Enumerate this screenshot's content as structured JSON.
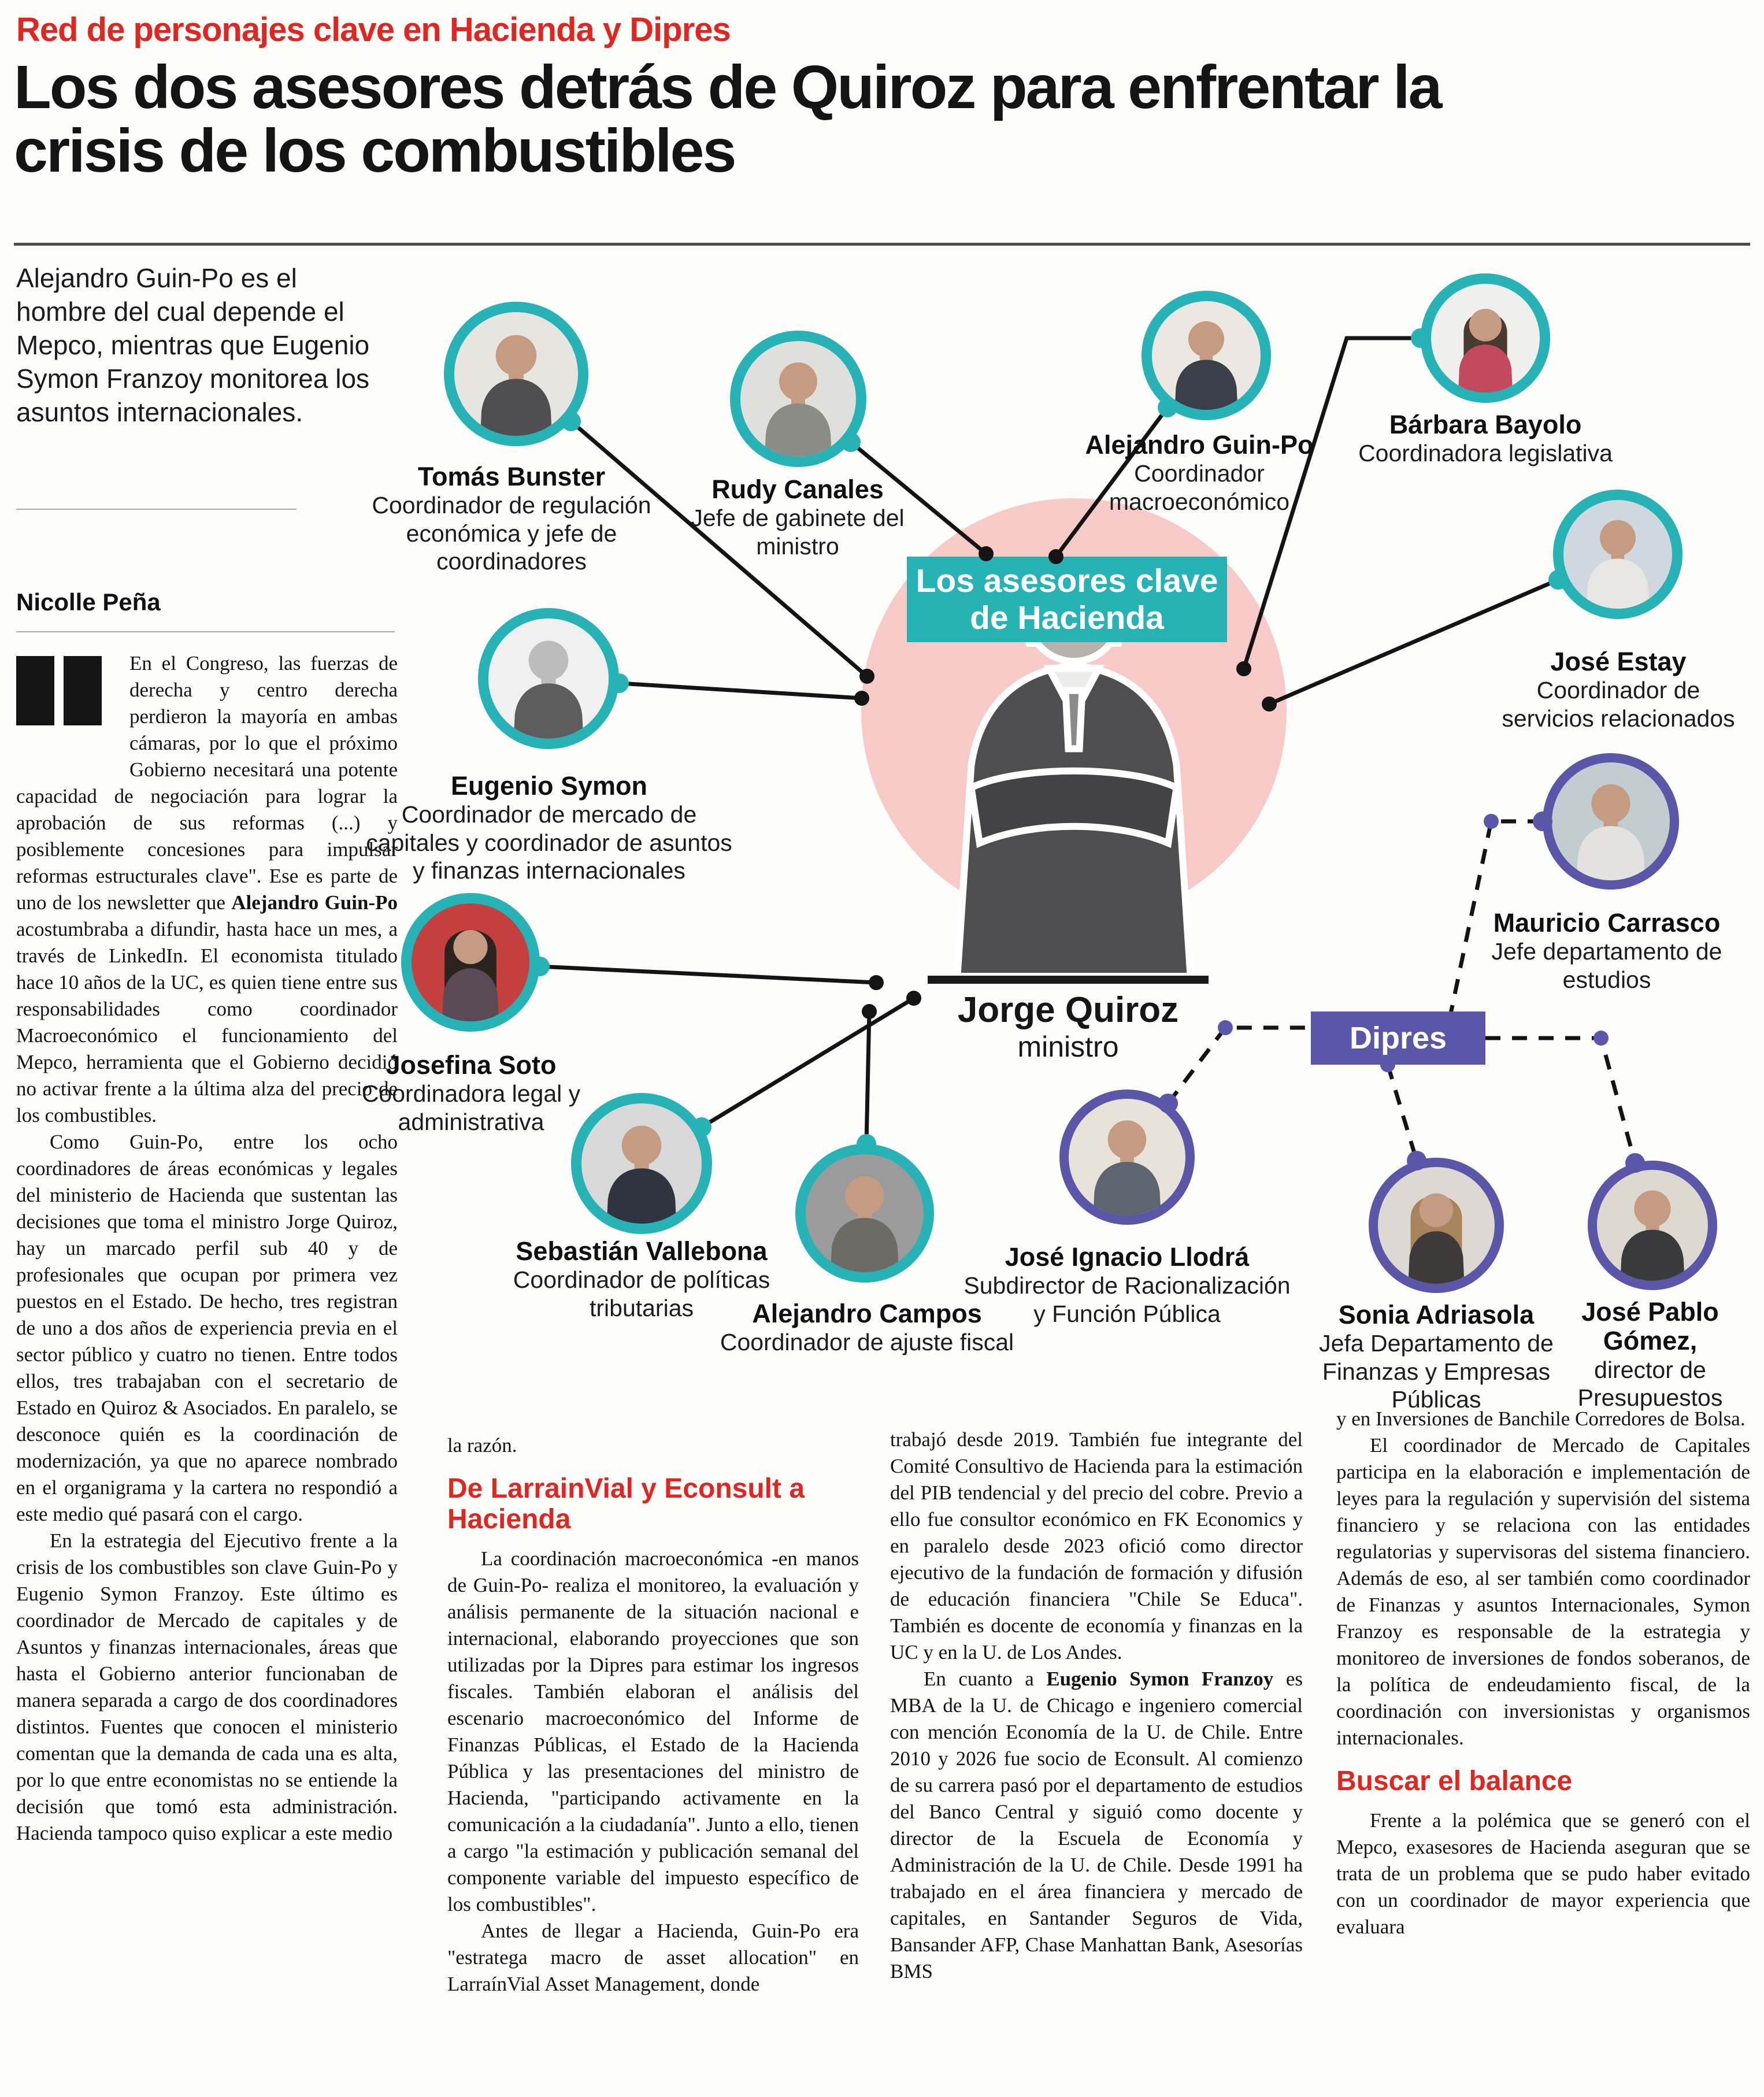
{
  "page": {
    "kicker": "Red de personajes clave en Hacienda y Dipres",
    "headline": "Los dos asesores detrás de Quiroz para enfrentar la crisis de los combustibles",
    "lede": "Alejandro Guin-Po es el hombre del cual depende el Mepco, mientras que Eugenio Symon Franzoy monitorea los asuntos internacionales.",
    "byline": "Nicolle Peña"
  },
  "colors": {
    "accent_red": "#e2251e",
    "hacienda_teal": "#27b2b5",
    "dipres_purple": "#5b57a8",
    "center_pink": "#f7cac7"
  },
  "article": {
    "col1": {
      "p1": [
        {
          "t": "En el Congreso, las fuerzas de derecha y centro derecha perdieron la mayoría en ambas cámaras, por lo que el próximo Gobierno necesitará una potente capacidad de negociación para lograr la aprobación de sus reformas (...) y posiblemente concesiones para impulsar reformas estructurales clave\". Ese es parte de uno de los newsletter que "
        },
        {
          "t": "Alejandro Guin-Po",
          "b": true
        },
        {
          "t": " acostumbraba a difundir, hasta hace un mes, a través de LinkedIn. El economista titulado hace 10 años de la UC, es quien tiene entre sus responsabilidades como coordinador Macroeconómico el funcionamiento del Mepco, herramienta que el Gobierno decidió no activar frente a la última alza del precio de los combustibles."
        }
      ],
      "p2": "Como Guin-Po, entre los ocho coordinadores de áreas económicas y legales del ministerio de Hacienda que sustentan las decisiones que toma el ministro Jorge Quiroz, hay un marcado perfil sub 40 y de profesionales que ocupan por primera vez puestos en el Estado. De hecho, tres registran de uno a dos años de experiencia previa en el sector público y cuatro no tienen. Entre todos ellos, tres trabajaban con el secretario de Estado en Quiroz & Asociados. En paralelo, se desconoce quién es la coordinación de modernización, ya que no aparece nombrado en el organigrama y la cartera no respondió a este medio qué pasará con el cargo.",
      "p3": "En la estrategia del Ejecutivo frente a la crisis de los combustibles son clave Guin-Po y Eugenio Symon Franzoy. Este último es coordinador de Mercado de capitales y de Asuntos y finanzas internacionales, áreas que hasta el Gobierno anterior funcionaban de manera separada a cargo de dos coordinadores distintos. Fuentes que conocen el ministerio comentan que la demanda de cada una es alta, por lo que entre economistas no se entiende la decisión que tomó esta administración. Hacienda tampoco quiso explicar a este medio"
    },
    "col2": {
      "cont": "la razón.",
      "heading": "De LarrainVial y Econsult a Hacienda",
      "p1": "La coordinación macroeconómica -en manos de Guin-Po- realiza el monitoreo, la evaluación y análisis permanente de la situación nacional e internacional, elaborando proyecciones que son utilizadas por la Dipres para estimar los ingresos fiscales. También elaboran el análisis del escenario macroeconómico del Informe de Finanzas Públicas, el Estado de la Hacienda Pública y las presentaciones del ministro de Hacienda, \"participando activamente en la comunicación a la ciudadanía\". Junto a ello, tienen a cargo \"la estimación y publicación semanal del componente variable del impuesto específico de los combustibles\".",
      "p2": "Antes de llegar a Hacienda, Guin-Po era \"estratega macro de asset allocation\" en LarraínVial Asset Management, donde"
    },
    "col3": {
      "p1": "trabajó desde 2019. También fue integrante del Comité Consultivo de Hacienda para la estimación del PIB tendencial y del precio del cobre. Previo a ello fue consultor económico en FK Economics y en paralelo desde 2023 ofició como director ejecutivo de la fundación de formación y difusión de educación financiera \"Chile Se Educa\". También es docente de economía y finanzas en la UC y en la U. de Los Andes.",
      "p2": [
        {
          "t": "En cuanto a "
        },
        {
          "t": "Eugenio Symon Franzoy",
          "b": true
        },
        {
          "t": " es MBA de la U. de Chicago e ingeniero comercial con mención Economía de la U. de Chile. Entre 2010 y 2026 fue socio de Econsult. Al comienzo de su carrera pasó por el departamento de estudios del Banco Central y siguió como docente y director de la Escuela de Economía y Administración de la U. de Chile. Desde 1991 ha trabajado en el área financiera y mercado de capitales, en Santander Seguros de Vida, Bansander AFP, Chase Manhattan Bank, Asesorías BMS"
        }
      ]
    },
    "col4": {
      "p1": "y en Inversiones de Banchile Corredores de Bolsa.",
      "p2": "El coordinador de Mercado de Capitales participa en la elaboración e implementación de leyes para la regulación y supervisión del sistema financiero y se relaciona con las entidades regulatorias y supervisoras del sistema financiero. Además de eso, al ser también como coordinador de Finanzas y asuntos Internacionales, Symon Franzoy es responsable de la estrategia y monitoreo de inversiones de fondos soberanos, de la política de endeudamiento fiscal, de la coordinación con inversionistas y organismos internacionales.",
      "heading": "Buscar el balance",
      "p3": "Frente a la polémica que se generó con el Mepco, exasesores de Hacienda aseguran que se trata de un problema que se pudo haber evitado con un coordinador de mayor experiencia que evaluara"
    }
  },
  "diagram": {
    "title_line1": "Los asesores clave",
    "title_line2": "de Hacienda",
    "dipres_label": "Dipres",
    "minister": {
      "name": "Jorge Quiroz",
      "role": "ministro"
    },
    "people": [
      {
        "name": "Tomás Bunster",
        "role": "Coordinador de regulación económica y jefe de coordinadores",
        "group": "hacienda"
      },
      {
        "name": "Rudy Canales",
        "role": "Jefe de gabinete del ministro",
        "group": "hacienda"
      },
      {
        "name": "Alejandro Guin-Po",
        "role": "Coordinador macroeconómico",
        "group": "hacienda"
      },
      {
        "name": "Bárbara Bayolo",
        "role": "Coordinadora legislativa",
        "group": "hacienda"
      },
      {
        "name": "José Estay",
        "role": "Coordinador de servicios relacionados",
        "group": "hacienda"
      },
      {
        "name": "Eugenio Symon",
        "role": "Coordinador de mercado de capitales y coordinador de asuntos y finanzas internacionales",
        "group": "hacienda"
      },
      {
        "name": "Josefina Soto",
        "role": "Coordinadora legal y administrativa",
        "group": "hacienda"
      },
      {
        "name": "Sebastián Vallebona",
        "role": "Coordinador de políticas tributarias",
        "group": "hacienda"
      },
      {
        "name": "Alejandro Campos",
        "role": "Coordinador de ajuste fiscal",
        "group": "hacienda"
      },
      {
        "name": "José Ignacio Llodrá",
        "role": "Subdirector de Racionalización y Función Pública",
        "group": "dipres"
      },
      {
        "name": "Mauricio Carrasco",
        "role": "Jefe departamento de estudios",
        "group": "dipres"
      },
      {
        "name": "Sonia Adriasola",
        "role": "Jefa Departamento de Finanzas y Empresas Públicas",
        "group": "dipres"
      },
      {
        "name": "José Pablo Gómez,",
        "role": "director de Presupuestos",
        "group": "dipres"
      }
    ]
  }
}
